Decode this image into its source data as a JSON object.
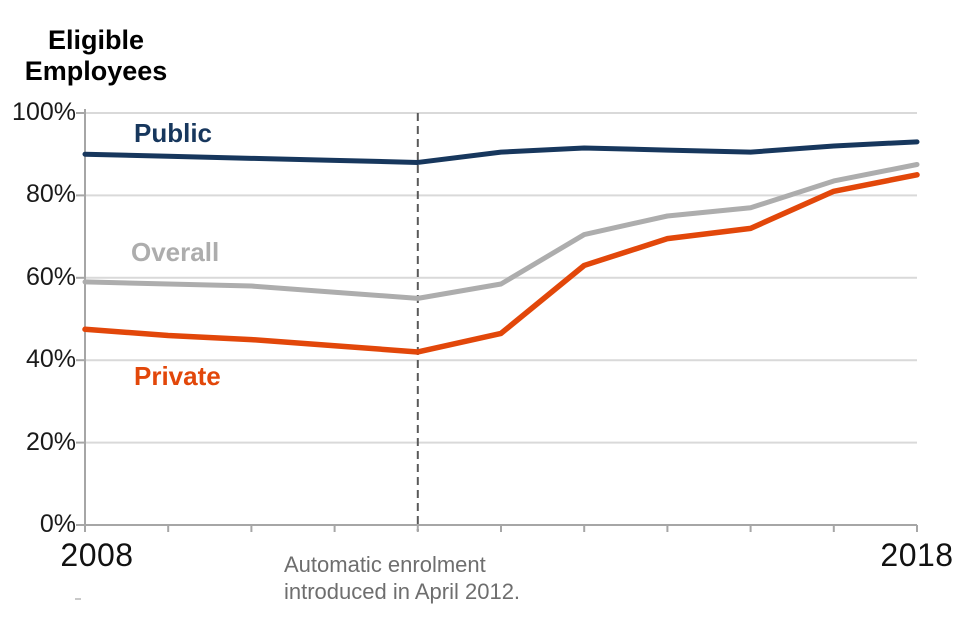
{
  "chart": {
    "title_lines": [
      "Eligible",
      "Employees"
    ]
  },
  "axis": {
    "y_ticks": [
      "100%",
      "80%",
      "60%",
      "40%",
      "20%",
      "0%"
    ],
    "x_left_label": "2008",
    "x_right_label": "2018"
  },
  "chart_data": {
    "type": "line",
    "title": "Eligible Employees",
    "xlabel": "",
    "ylabel": "Eligible Employees (%)",
    "x": [
      2008,
      2009,
      2010,
      2011,
      2012,
      2013,
      2014,
      2015,
      2016,
      2017,
      2018
    ],
    "x_axis_labels_shown": [
      "2008",
      "2018"
    ],
    "ylim": [
      0,
      100
    ],
    "y_tick_values": [
      0,
      20,
      40,
      60,
      80,
      100
    ],
    "y_tick_labels": [
      "0%",
      "20%",
      "40%",
      "60%",
      "80%",
      "100%"
    ],
    "grid": "horizontal",
    "legend_position": "inline-labels-on-chart",
    "series": [
      {
        "name": "Public",
        "color": "#17375D",
        "width": 5,
        "values": [
          90,
          89.5,
          89,
          88.5,
          88,
          90.5,
          91.5,
          91,
          90.5,
          92,
          93
        ]
      },
      {
        "name": "Overall",
        "color": "#ADADAD",
        "width": 5,
        "values": [
          59,
          58.5,
          58,
          56.5,
          55,
          58.5,
          70.5,
          75,
          77,
          83.5,
          87.5
        ]
      },
      {
        "name": "Private",
        "color": "#E2470A",
        "width": 5.5,
        "values": [
          47.5,
          46,
          45,
          43.5,
          42,
          46.5,
          63,
          69.5,
          72,
          81,
          85
        ]
      }
    ],
    "annotation": {
      "text_lines": [
        "Automatic enrolment",
        "introduced in April 2012."
      ],
      "x_year": 2012,
      "line_style": "dashed-vertical"
    }
  },
  "colors": {
    "gridline": "#D9D9D9",
    "axis": "#A6A6A6",
    "dashed_line": "#595959",
    "annotation_text": "#6E6E6E",
    "public_line": "#17375D",
    "overall_line": "#ADADAD",
    "private_line": "#E2470A"
  }
}
